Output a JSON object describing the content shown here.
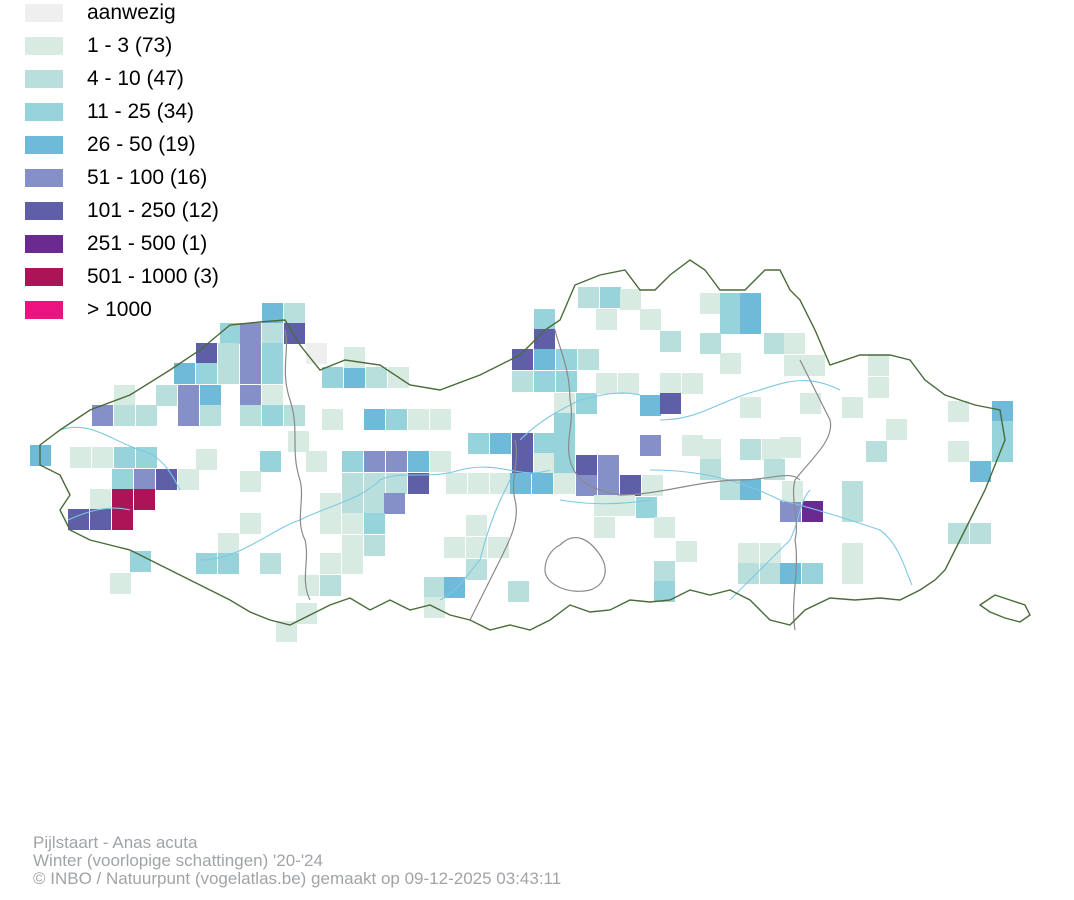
{
  "legend": {
    "items": [
      {
        "label": "aanwezig",
        "color": "#efefef"
      },
      {
        "label": "1 - 3 (73)",
        "color": "#d8ebe2"
      },
      {
        "label": "4 - 10 (47)",
        "color": "#b8dfdc"
      },
      {
        "label": "11 - 25 (34)",
        "color": "#96d3da"
      },
      {
        "label": "26 - 50 (19)",
        "color": "#6fb9d9"
      },
      {
        "label": "51 - 100 (16)",
        "color": "#8590c8"
      },
      {
        "label": "101 - 250 (12)",
        "color": "#5f5fa8"
      },
      {
        "label": "251 - 500 (1)",
        "color": "#6b2a90"
      },
      {
        "label": "501 - 1000 (3)",
        "color": "#ad1457"
      },
      {
        "label": "> 1000",
        "color": "#ec1280"
      }
    ]
  },
  "footer": {
    "line1": "Pijlstaart - Anas acuta",
    "line2": "Winter (voorlopige schattingen) '20-'24",
    "line3": "© INBO / Natuurpunt (vogelatlas.be) gemaakt op 09-12-2025 03:43:11"
  },
  "colors": {
    "border": "#4a6b3a",
    "province_border": "#8a8a8a",
    "river": "#7ec8e3"
  }
}
